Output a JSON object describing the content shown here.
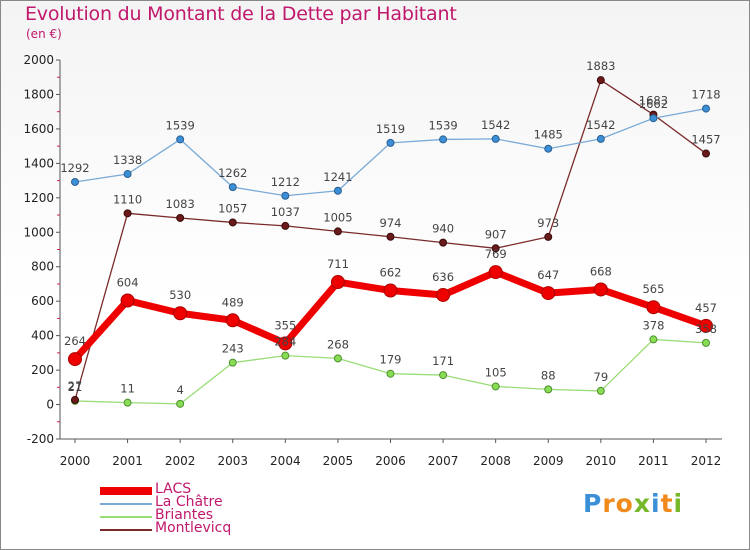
{
  "header": {
    "title": "Evolution du Montant de la Dette par Habitant",
    "subtitle": "(en €)"
  },
  "colors": {
    "title": "#c0186c",
    "lacs": "#ee0000",
    "la_chatre": "#7aaad6",
    "briantes": "#99dd77",
    "montlevicq": "#7a2a2a"
  },
  "logo": {
    "text": "Proxiti",
    "letter_colors": [
      "#3b8fd6",
      "#f08a1c",
      "#f08a1c",
      "#76b82a",
      "#3b8fd6",
      "#f08a1c",
      "#76b82a"
    ]
  },
  "chart_data": {
    "type": "line",
    "title": "Evolution du Montant de la Dette par Habitant",
    "subtitle": "(en €)",
    "x": [
      "2000",
      "2001",
      "2002",
      "2003",
      "2004",
      "2005",
      "2006",
      "2007",
      "2008",
      "2009",
      "2010",
      "2011",
      "2012"
    ],
    "ylim": [
      -200,
      2000
    ],
    "yticks": [
      -200,
      0,
      200,
      400,
      600,
      800,
      1000,
      1200,
      1400,
      1600,
      1800,
      2000
    ],
    "grid": false,
    "legend_position": "bottom-left",
    "series": [
      {
        "name": "LACS",
        "color": "#ee0000",
        "values": [
          264,
          604,
          530,
          489,
          355,
          711,
          662,
          636,
          769,
          647,
          668,
          565,
          457
        ],
        "labels": [
          "264",
          "604",
          "530",
          "489",
          "355",
          "711",
          "662",
          "636",
          "769",
          "647",
          "668",
          "565",
          "457"
        ]
      },
      {
        "name": "La Châtre",
        "color": "#7aaad6",
        "values": [
          1292,
          1338,
          1539,
          1262,
          1212,
          1241,
          1519,
          1539,
          1542,
          1485,
          1542,
          1662,
          1718
        ],
        "labels": [
          "1292",
          "1338",
          "1539",
          "1262",
          "1212",
          "1241",
          "1519",
          "1539",
          "1542",
          "1485",
          "1542",
          "1662",
          "1718"
        ]
      },
      {
        "name": "Briantes",
        "color": "#99dd77",
        "values": [
          21,
          11,
          4,
          243,
          284,
          268,
          179,
          171,
          105,
          88,
          79,
          378,
          358
        ],
        "labels": [
          "21",
          "11",
          "4",
          "243",
          "284",
          "268",
          "179",
          "171",
          "105",
          "88",
          "79",
          "378",
          "358"
        ]
      },
      {
        "name": "Montlevicq",
        "color": "#7a2a2a",
        "values": [
          27,
          1110,
          1083,
          1057,
          1037,
          1005,
          974,
          940,
          907,
          973,
          1883,
          1683,
          1457
        ],
        "labels": [
          "27",
          "1110",
          "1083",
          "1057",
          "1037",
          "1005",
          "974",
          "940",
          "907",
          "973",
          "1883",
          "1683",
          "1457"
        ]
      }
    ]
  }
}
